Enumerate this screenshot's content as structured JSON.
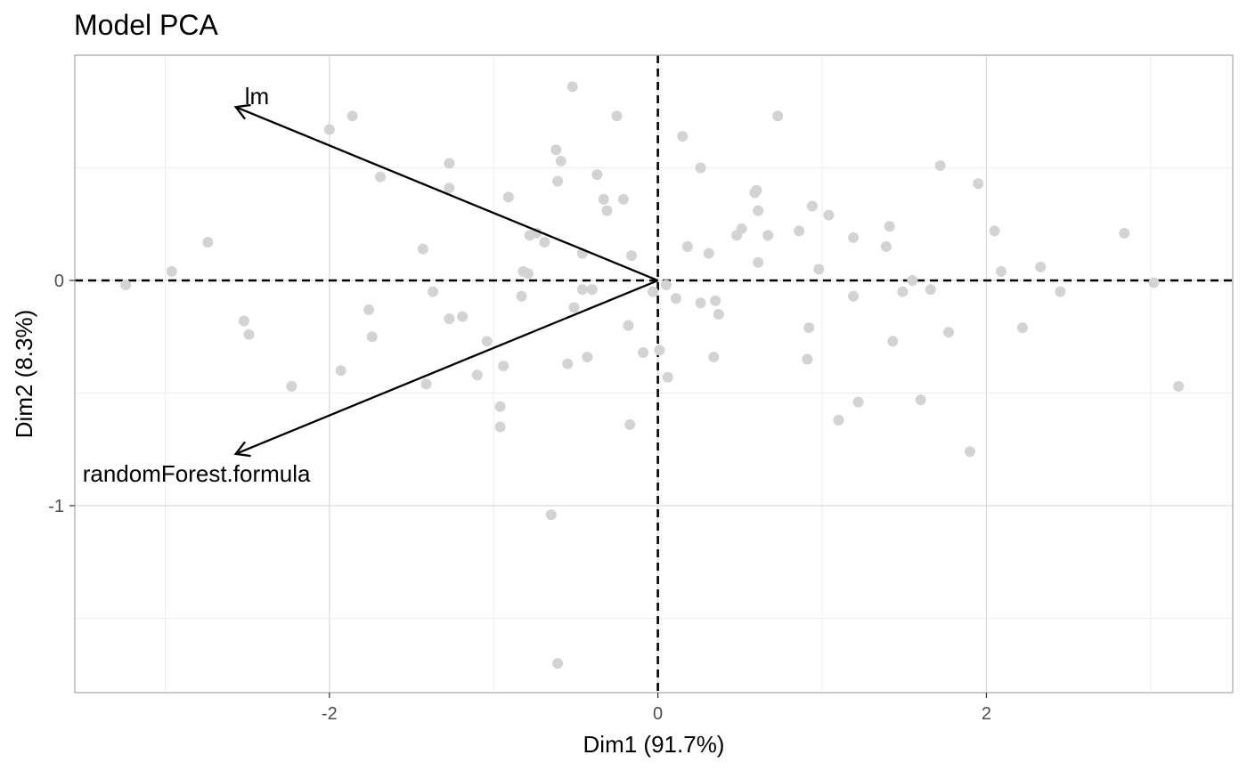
{
  "chart_data": {
    "type": "scatter",
    "title": "Model PCA",
    "xlabel": "Dim1 (91.7%)",
    "ylabel": "Dim2 (8.3%)",
    "xlim": [
      -3.55,
      3.5
    ],
    "ylim": [
      -1.83,
      1.0
    ],
    "x_ticks": [
      -2,
      0,
      2
    ],
    "x_tick_labels": [
      "-2",
      "0",
      "2"
    ],
    "y_ticks": [
      0,
      -1
    ],
    "y_tick_labels": [
      "0",
      "-1"
    ],
    "grid": true,
    "reference_lines": {
      "x": 0,
      "y": 0,
      "style": "dashed"
    },
    "point_color": "#d3d3d3",
    "arrows": [
      {
        "name": "lm",
        "label": "lm",
        "x": -2.57,
        "y": 0.77
      },
      {
        "name": "randomForest.formula",
        "label": "randomForest.formula",
        "x": -2.57,
        "y": -0.77
      }
    ],
    "points": [
      [
        -3.24,
        -0.02
      ],
      [
        -2.96,
        0.04
      ],
      [
        -2.74,
        0.17
      ],
      [
        -2.52,
        -0.18
      ],
      [
        -2.49,
        -0.24
      ],
      [
        -2.23,
        -0.47
      ],
      [
        -2.0,
        0.67
      ],
      [
        -1.93,
        -0.4
      ],
      [
        -1.86,
        0.73
      ],
      [
        -1.76,
        -0.13
      ],
      [
        -1.74,
        -0.25
      ],
      [
        -1.69,
        0.46
      ],
      [
        -1.43,
        0.14
      ],
      [
        -1.41,
        -0.46
      ],
      [
        -1.37,
        -0.05
      ],
      [
        -1.27,
        -0.17
      ],
      [
        -1.27,
        0.41
      ],
      [
        -1.27,
        0.52
      ],
      [
        -1.19,
        -0.16
      ],
      [
        -1.1,
        -0.42
      ],
      [
        -1.04,
        -0.27
      ],
      [
        -0.96,
        -0.56
      ],
      [
        -0.96,
        -0.65
      ],
      [
        -0.94,
        -0.38
      ],
      [
        -0.91,
        0.37
      ],
      [
        -0.83,
        -0.07
      ],
      [
        -0.82,
        0.04
      ],
      [
        -0.79,
        0.03
      ],
      [
        -0.78,
        0.2
      ],
      [
        -0.74,
        0.21
      ],
      [
        -0.69,
        0.17
      ],
      [
        -0.65,
        -1.04
      ],
      [
        -0.62,
        0.58
      ],
      [
        -0.61,
        0.44
      ],
      [
        -0.61,
        -1.7
      ],
      [
        -0.59,
        0.53
      ],
      [
        -0.55,
        -0.37
      ],
      [
        -0.52,
        0.86
      ],
      [
        -0.51,
        -0.12
      ],
      [
        -0.46,
        0.12
      ],
      [
        -0.46,
        -0.04
      ],
      [
        -0.43,
        -0.34
      ],
      [
        -0.4,
        -0.04
      ],
      [
        -0.37,
        0.47
      ],
      [
        -0.33,
        0.36
      ],
      [
        -0.31,
        0.31
      ],
      [
        -0.25,
        0.73
      ],
      [
        -0.21,
        0.36
      ],
      [
        -0.18,
        -0.2
      ],
      [
        -0.17,
        -0.64
      ],
      [
        -0.16,
        0.11
      ],
      [
        -0.09,
        -0.32
      ],
      [
        -0.03,
        -0.05
      ],
      [
        0.01,
        -0.31
      ],
      [
        0.05,
        -0.02
      ],
      [
        0.06,
        -0.43
      ],
      [
        0.11,
        -0.08
      ],
      [
        0.15,
        0.64
      ],
      [
        0.18,
        0.15
      ],
      [
        0.26,
        -0.1
      ],
      [
        0.26,
        0.5
      ],
      [
        0.31,
        0.12
      ],
      [
        0.34,
        -0.34
      ],
      [
        0.35,
        -0.09
      ],
      [
        0.37,
        -0.15
      ],
      [
        0.48,
        0.2
      ],
      [
        0.51,
        0.23
      ],
      [
        0.59,
        0.39
      ],
      [
        0.6,
        0.4
      ],
      [
        0.61,
        0.08
      ],
      [
        0.61,
        0.31
      ],
      [
        0.67,
        0.2
      ],
      [
        0.73,
        0.73
      ],
      [
        0.86,
        0.22
      ],
      [
        0.91,
        -0.35
      ],
      [
        0.92,
        -0.21
      ],
      [
        0.94,
        0.33
      ],
      [
        0.98,
        0.05
      ],
      [
        1.04,
        0.29
      ],
      [
        1.1,
        -0.62
      ],
      [
        1.19,
        -0.07
      ],
      [
        1.19,
        0.19
      ],
      [
        1.22,
        -0.54
      ],
      [
        1.39,
        0.15
      ],
      [
        1.41,
        0.24
      ],
      [
        1.43,
        -0.27
      ],
      [
        1.49,
        -0.05
      ],
      [
        1.55,
        0.0
      ],
      [
        1.6,
        -0.53
      ],
      [
        1.66,
        -0.04
      ],
      [
        1.72,
        0.51
      ],
      [
        1.77,
        -0.23
      ],
      [
        1.9,
        -0.76
      ],
      [
        1.95,
        0.43
      ],
      [
        2.05,
        0.22
      ],
      [
        2.09,
        0.04
      ],
      [
        2.22,
        -0.21
      ],
      [
        2.33,
        0.06
      ],
      [
        2.45,
        -0.05
      ],
      [
        2.84,
        0.21
      ],
      [
        3.02,
        -0.01
      ],
      [
        3.17,
        -0.47
      ]
    ]
  }
}
